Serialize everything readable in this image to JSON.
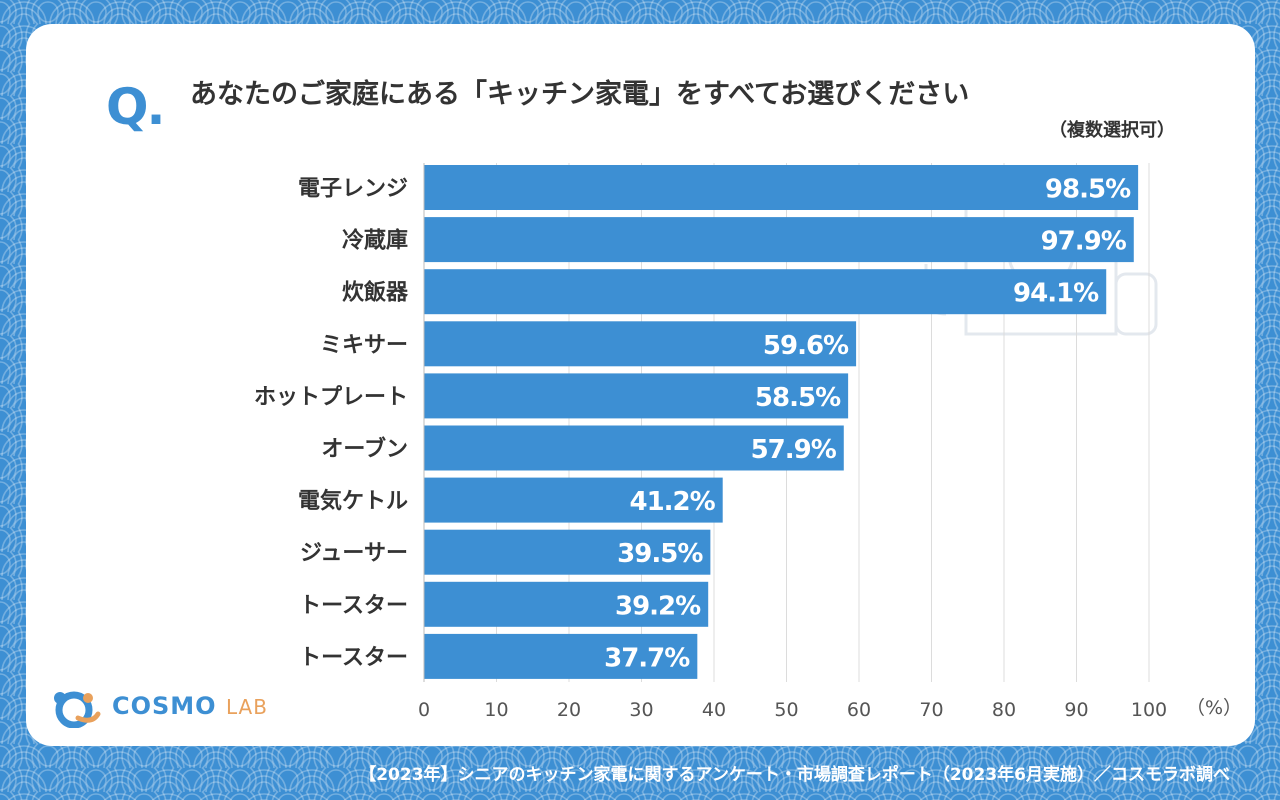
{
  "question": {
    "mark": "Q.",
    "title": "あなたのご家庭にある「キッチン家電」をすべてお選びください",
    "note": "（複数選択可）"
  },
  "logo": {
    "name_main": "COSMO",
    "name_sub": "LAB"
  },
  "footer": "【2023年】シニアのキッチン家電に関するアンケート・市場調査レポート（2023年6月実施）／コスモラボ調べ",
  "colors": {
    "background": "#3d8fd3",
    "bar": "#3d8fd3",
    "card": "#ffffff",
    "text": "#333333",
    "logo_accent": "#e9a15c"
  },
  "chart_data": {
    "type": "bar",
    "orientation": "horizontal",
    "categories": [
      "電子レンジ",
      "冷蔵庫",
      "炊飯器",
      "ミキサー",
      "ホットプレート",
      "オーブン",
      "電気ケトル",
      "ジューサー",
      "トースター",
      "トースター"
    ],
    "values": [
      98.5,
      97.9,
      94.1,
      59.6,
      58.5,
      57.9,
      41.2,
      39.5,
      39.2,
      37.7
    ],
    "value_labels": [
      "98.5%",
      "97.9%",
      "94.1%",
      "59.6%",
      "58.5%",
      "57.9%",
      "41.2%",
      "39.5%",
      "39.2%",
      "37.7%"
    ],
    "xlim": [
      0,
      100
    ],
    "xticks": [
      0,
      10,
      20,
      30,
      40,
      50,
      60,
      70,
      80,
      90,
      100
    ],
    "xunit": "（%）",
    "grid": "vertical"
  }
}
